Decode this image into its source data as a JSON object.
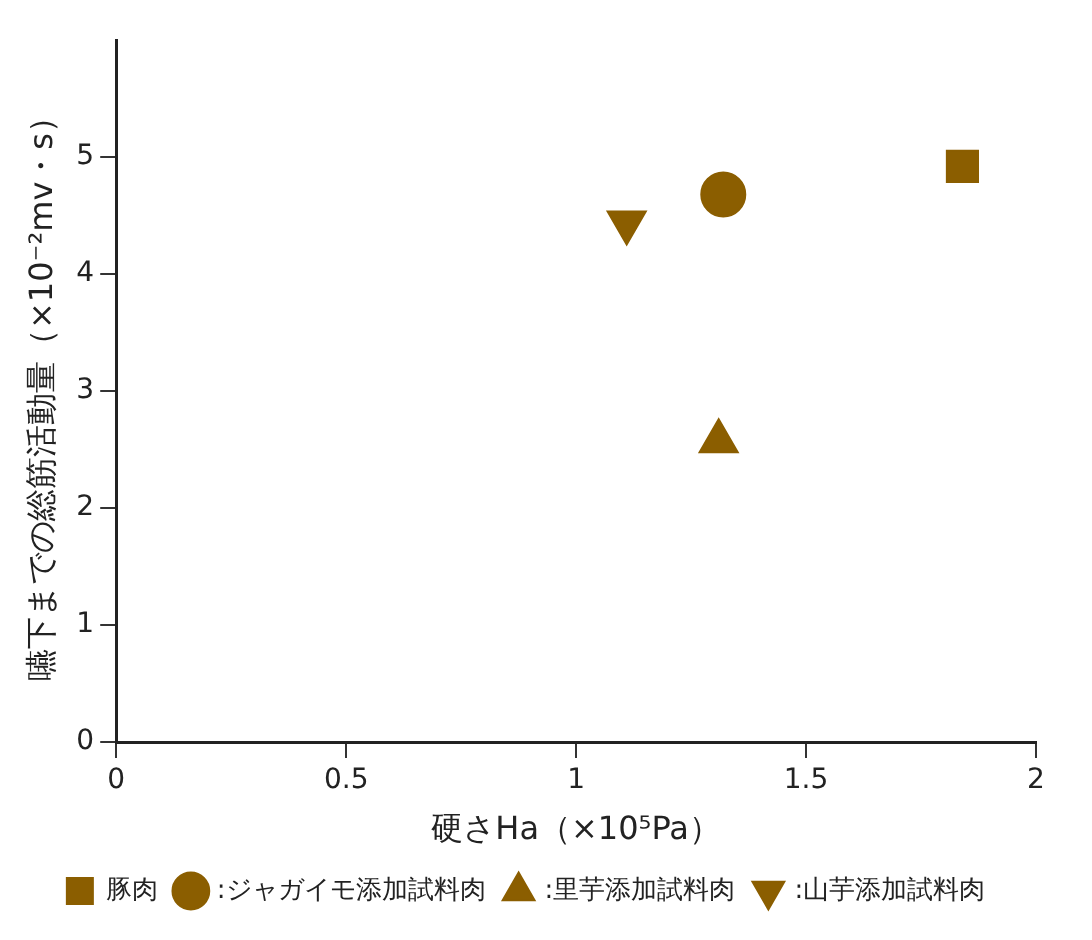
{
  "chart_data": {
    "type": "scatter",
    "xlabel": "硬さHa（×10⁵Pa）",
    "ylabel": "嚥下までの総筋活動量（×10⁻²mv・s）",
    "xlim": [
      0,
      2
    ],
    "xticks": [
      0,
      0.5,
      1,
      1.5,
      2
    ],
    "ylim": [
      0,
      6
    ],
    "yticks": [
      0,
      1,
      2,
      3,
      4,
      5
    ],
    "grid": false,
    "legend": "bottom",
    "series": [
      {
        "name": "豚肉",
        "color": "#8b5e00",
        "marker": "square",
        "x": [
          1.84
        ],
        "values": [
          4.92
        ]
      },
      {
        "name": ":ジャガイモ添加試料肉",
        "color": "#8b5e00",
        "marker": "circle",
        "x": [
          1.32
        ],
        "values": [
          4.68
        ]
      },
      {
        "name": ":里芋添加試料肉",
        "color": "#8b5e00",
        "marker": "triangle",
        "x": [
          1.31
        ],
        "values": [
          2.57
        ]
      },
      {
        "name": ":山芋添加試料肉",
        "color": "#8b5e00",
        "marker": "triangle-down",
        "x": [
          1.11
        ],
        "values": [
          4.44
        ]
      }
    ]
  }
}
